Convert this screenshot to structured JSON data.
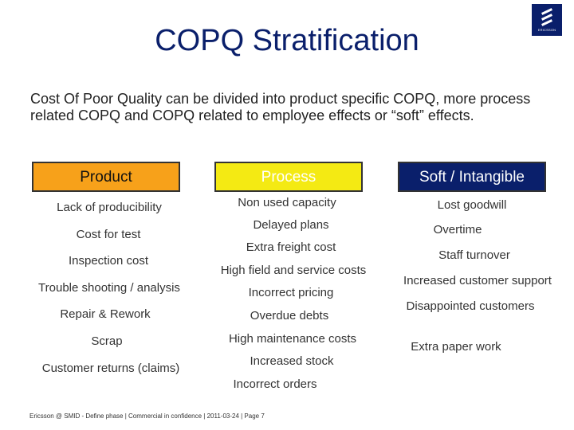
{
  "title": "COPQ Stratification",
  "logo": {
    "icon": "ericsson-logo",
    "text": "ERICSSON"
  },
  "intro": "Cost Of Poor Quality can be divided into product specific COPQ, more process related COPQ and COPQ related to employee effects or “soft” effects.",
  "columns": {
    "product": {
      "header": "Product",
      "color": "#f7a11a",
      "items": [
        "Lack of producibility",
        "Cost for test",
        "Inspection cost",
        "Trouble shooting / analysis",
        "Repair & Rework",
        "Scrap",
        "Customer returns (claims)"
      ]
    },
    "process": {
      "header": "Process",
      "color": "#f4ea13",
      "items": [
        "Non used capacity",
        "Delayed plans",
        "Extra freight cost",
        "High field and service costs",
        "Incorrect pricing",
        "Overdue debts",
        "High maintenance costs",
        "Increased stock",
        "Incorrect orders"
      ]
    },
    "soft": {
      "header": "Soft / Intangible",
      "color": "#0a1f6b",
      "items": [
        "Lost goodwill",
        "Overtime",
        "Staff turnover",
        "Increased customer support",
        "Disappointed customers",
        "Extra paper work"
      ]
    }
  },
  "footer": "Ericsson @ SMID - Define phase  |  Commercial in confidence  |  2011-03-24  |  Page 7"
}
